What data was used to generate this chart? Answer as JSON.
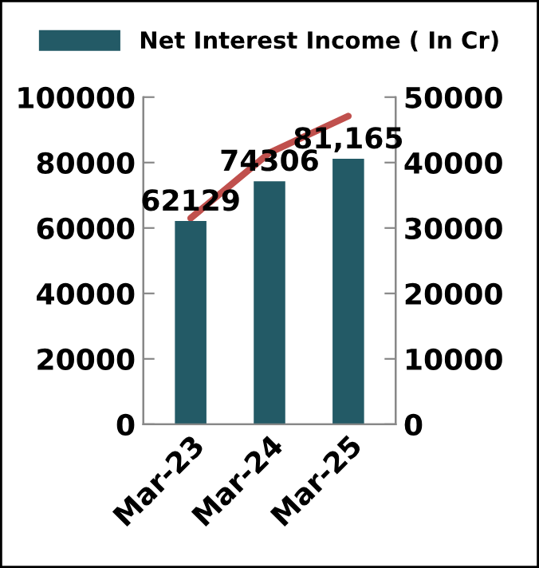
{
  "chart_data": {
    "type": "bar",
    "categories": [
      "Mar-23",
      "Mar-24",
      "Mar-25"
    ],
    "series": [
      {
        "name": "Net Interest Income ( In Cr)",
        "color": "#235a66",
        "values": [
          62129,
          74306,
          81165
        ],
        "value_labels": [
          "62129",
          "74306",
          "81,165"
        ]
      },
      {
        "type": "line",
        "axis": "y2",
        "color": "#c0504d",
        "values": [
          31500,
          41500,
          47100
        ]
      }
    ],
    "ylim": [
      0,
      100000
    ],
    "yticks": [
      0,
      20000,
      40000,
      60000,
      80000,
      100000
    ],
    "y2lim": [
      0,
      50000
    ],
    "y2ticks": [
      0,
      10000,
      20000,
      30000,
      40000,
      50000
    ],
    "legend": "top",
    "grid": false,
    "marker": "none",
    "line_style": "solid"
  }
}
